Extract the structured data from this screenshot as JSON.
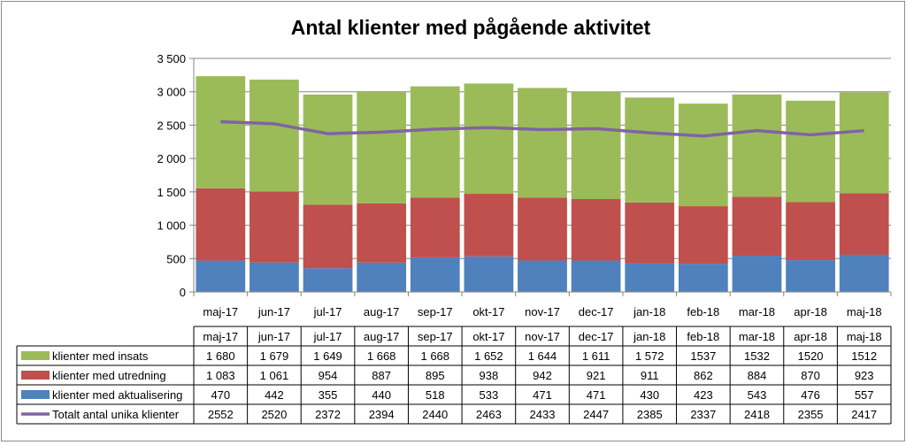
{
  "chart_data": {
    "type": "bar",
    "stacked": true,
    "title": "Antal klienter med pågående aktivitet",
    "categories": [
      "maj-17",
      "jun-17",
      "jul-17",
      "aug-17",
      "sep-17",
      "okt-17",
      "nov-17",
      "dec-17",
      "jan-18",
      "feb-18",
      "mar-18",
      "apr-18",
      "maj-18"
    ],
    "ylim": [
      0,
      3500
    ],
    "yticks": [
      0,
      500,
      1000,
      1500,
      2000,
      2500,
      3000,
      3500
    ],
    "ytick_labels": [
      "0",
      "500",
      "1 000",
      "1 500",
      "2 000",
      "2 500",
      "3 000",
      "3 500"
    ],
    "grid": true,
    "legend": "data-table",
    "series": [
      {
        "name": "klienter med aktualisering",
        "kind": "bar",
        "color": "#4f81bd",
        "values": [
          470,
          442,
          355,
          440,
          518,
          533,
          471,
          471,
          430,
          423,
          543,
          476,
          557
        ],
        "labels": [
          "470",
          "442",
          "355",
          "440",
          "518",
          "533",
          "471",
          "471",
          "430",
          "423",
          "543",
          "476",
          "557"
        ]
      },
      {
        "name": "klienter med utredning",
        "kind": "bar",
        "color": "#c0504d",
        "values": [
          1083,
          1061,
          954,
          887,
          895,
          938,
          942,
          921,
          911,
          862,
          884,
          870,
          923
        ],
        "labels": [
          "1 083",
          "1 061",
          "954",
          "887",
          "895",
          "938",
          "942",
          "921",
          "911",
          "862",
          "884",
          "870",
          "923"
        ]
      },
      {
        "name": "klienter med insats",
        "kind": "bar",
        "color": "#9bbb59",
        "values": [
          1680,
          1679,
          1649,
          1668,
          1668,
          1652,
          1644,
          1611,
          1572,
          1537,
          1532,
          1520,
          1512
        ],
        "labels": [
          "1 680",
          "1 679",
          "1 649",
          "1 668",
          "1 668",
          "1 652",
          "1 644",
          "1 611",
          "1 572",
          "1537",
          "1532",
          "1520",
          "1512"
        ]
      },
      {
        "name": "Totalt antal unika klienter",
        "kind": "line",
        "color": "#8064a2",
        "values": [
          2552,
          2520,
          2372,
          2394,
          2440,
          2463,
          2433,
          2447,
          2385,
          2337,
          2418,
          2355,
          2417
        ],
        "labels": [
          "2552",
          "2520",
          "2372",
          "2394",
          "2440",
          "2463",
          "2433",
          "2447",
          "2385",
          "2337",
          "2418",
          "2355",
          "2417"
        ]
      }
    ],
    "table_row_order": [
      2,
      1,
      0,
      3
    ]
  }
}
